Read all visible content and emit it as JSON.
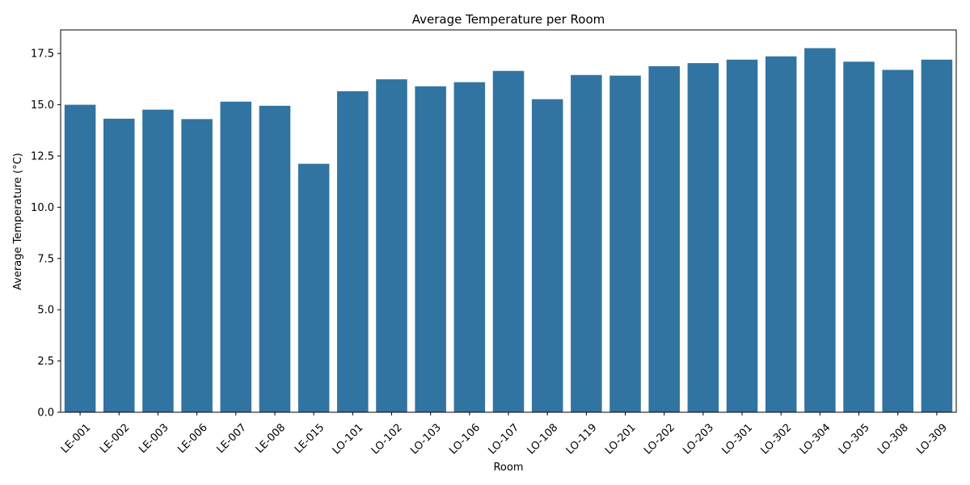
{
  "chart_data": {
    "type": "bar",
    "title": "Average Temperature per Room",
    "xlabel": "Room",
    "ylabel": "Average Temperature (°C)",
    "ylim": [
      0,
      18.65
    ],
    "yticks": [
      0.0,
      2.5,
      5.0,
      7.5,
      10.0,
      12.5,
      15.0,
      17.5
    ],
    "ytick_labels": [
      "0.0",
      "2.5",
      "5.0",
      "7.5",
      "10.0",
      "12.5",
      "15.0",
      "17.5"
    ],
    "grid": false,
    "categories": [
      "LE-001",
      "LE-002",
      "LE-003",
      "LE-006",
      "LE-007",
      "LE-008",
      "LE-015",
      "LO-101",
      "LO-102",
      "LO-103",
      "LO-106",
      "LO-107",
      "LO-108",
      "LO-119",
      "LO-201",
      "LO-202",
      "LO-203",
      "LO-301",
      "LO-302",
      "LO-304",
      "LO-305",
      "LO-308",
      "LO-309"
    ],
    "values": [
      15.0,
      14.32,
      14.76,
      14.3,
      15.15,
      14.95,
      12.12,
      15.66,
      16.24,
      15.9,
      16.1,
      16.65,
      15.27,
      16.45,
      16.42,
      16.88,
      17.03,
      17.2,
      17.36,
      17.76,
      17.1,
      16.7,
      17.2
    ],
    "bar_color": "#3274a1"
  }
}
